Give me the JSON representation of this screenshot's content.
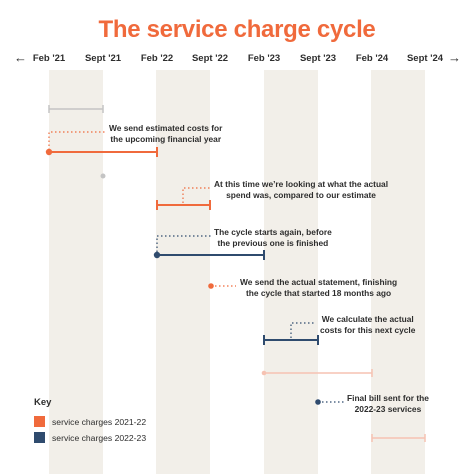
{
  "title": "The service charge cycle",
  "timeline": {
    "left_arrow": "←",
    "right_arrow": "→",
    "labels": [
      "Feb '21",
      "Sept '21",
      "Feb '22",
      "Sept '22",
      "Feb '23",
      "Sept '23",
      "Feb '24",
      "Sept '24"
    ]
  },
  "captions": {
    "estimate": [
      "We send estimated costs for",
      "the upcoming financial year"
    ],
    "review": [
      "At this time we’re looking at what the actual",
      "spend was, compared to our estimate"
    ],
    "restart": [
      "The cycle starts again, before",
      "the previous one is finished"
    ],
    "statement": [
      "We send the actual statement, finishing",
      "the cycle that started 18 months ago"
    ],
    "calculate": [
      "We calculate the actual",
      "costs for this next cycle"
    ],
    "final": [
      "Final bill sent for the",
      "2022-23 services"
    ]
  },
  "key": {
    "title": "Key",
    "items": [
      {
        "label": "service charges 2021-22",
        "color": "#f06a3c"
      },
      {
        "label": "service charges 2022-23",
        "color": "#2f4b6e"
      }
    ]
  },
  "colors": {
    "orange": "#f06a3c",
    "navy": "#2f4b6e",
    "band": "#f2efe9",
    "faded_gray": "#c4c4c4",
    "faded_pink": "#f6c2b2"
  }
}
